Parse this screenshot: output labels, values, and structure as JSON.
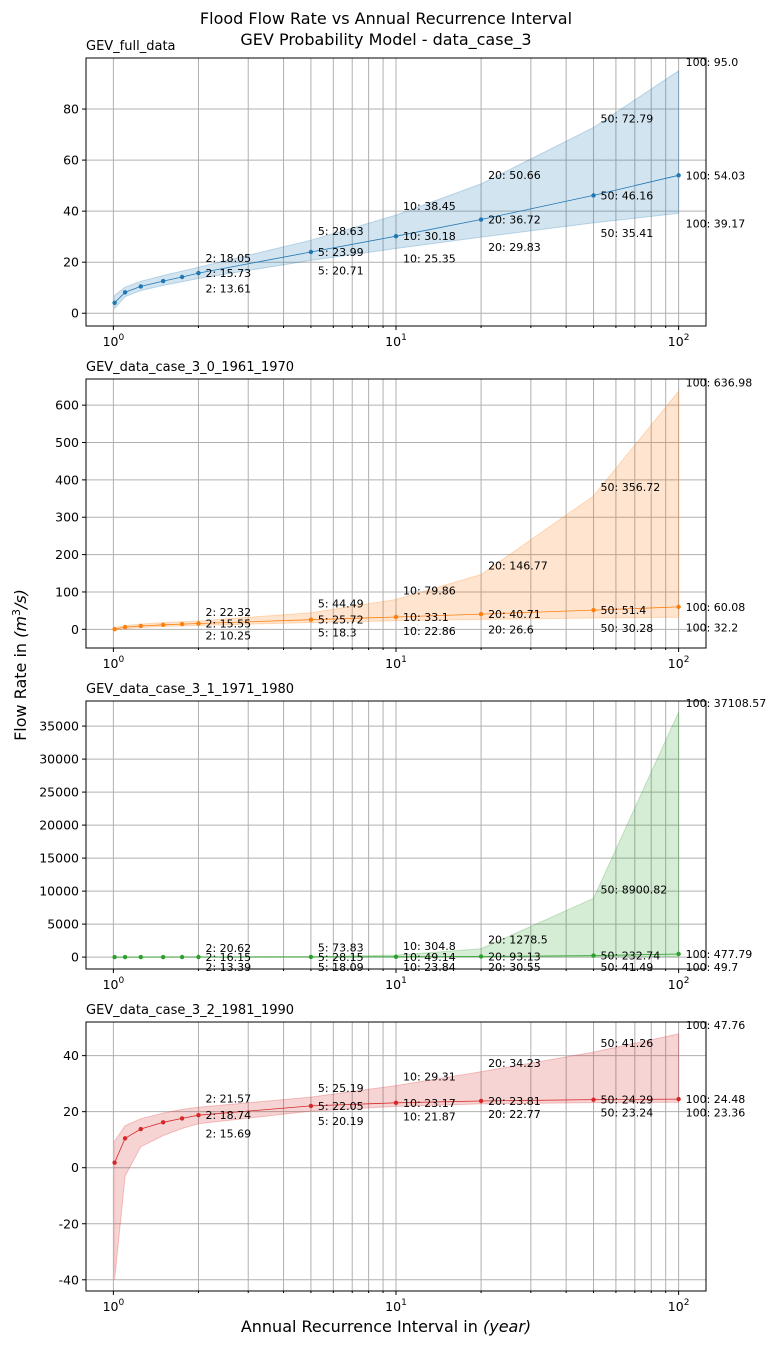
{
  "figure": {
    "title_line1": "Flood Flow Rate vs Annual Recurrence Interval",
    "title_line2": "GEV Probability Model - data_case_3",
    "xlabel_main": "Annual Recurrence Interval in ",
    "xlabel_unit": "(year)",
    "ylabel_main": "Flow Rate in ",
    "ylabel_unit": "(m",
    "ylabel_exp": "3",
    "ylabel_tail": "/s)",
    "x_tick_base": "10",
    "x_tick_exps": [
      "0",
      "1",
      "2"
    ]
  },
  "chart_data": [
    {
      "type": "line",
      "title": "GEV_full_data",
      "xscale": "log",
      "xlim": [
        0.8,
        125
      ],
      "ylim": [
        -5,
        100
      ],
      "yticks": [
        0,
        20,
        40,
        60,
        80
      ],
      "grid": true,
      "color": "#1f77b4",
      "x": [
        1.01,
        1.1,
        1.25,
        1.5,
        1.75,
        2,
        5,
        10,
        20,
        50,
        100
      ],
      "estimate": [
        4.1,
        8.2,
        10.5,
        12.6,
        14.2,
        15.73,
        23.99,
        30.18,
        36.72,
        46.16,
        54.03
      ],
      "lower": [
        1.8,
        6.5,
        8.9,
        10.9,
        12.3,
        13.61,
        20.71,
        25.35,
        29.83,
        35.41,
        39.17
      ],
      "upper": [
        7.0,
        10.2,
        12.5,
        14.8,
        16.5,
        18.05,
        28.63,
        38.45,
        50.66,
        72.79,
        95.0
      ],
      "annotations": {
        "upper": [
          "2: 18.05",
          "5: 28.63",
          "10: 38.45",
          "20: 50.66",
          "50: 72.79",
          "100: 95.0"
        ],
        "estimate": [
          "2: 15.73",
          "5: 23.99",
          "10: 30.18",
          "20: 36.72",
          "50: 46.16",
          "100: 54.03"
        ],
        "lower": [
          "2: 13.61",
          "5: 20.71",
          "10: 25.35",
          "20: 29.83",
          "50: 35.41",
          "100: 39.17"
        ]
      }
    },
    {
      "type": "line",
      "title": "GEV_data_case_3_0_1961_1970",
      "xscale": "log",
      "xlim": [
        0.8,
        125
      ],
      "ylim": [
        -50,
        670
      ],
      "yticks": [
        0,
        100,
        200,
        300,
        400,
        500,
        600
      ],
      "grid": true,
      "color": "#ff7f0e",
      "x": [
        1.01,
        1.1,
        1.25,
        1.5,
        1.75,
        2,
        5,
        10,
        20,
        50,
        100
      ],
      "estimate": [
        0.5,
        6.0,
        9.0,
        12.0,
        14.0,
        15.55,
        25.72,
        33.1,
        40.71,
        51.4,
        60.08
      ],
      "lower": [
        -3.0,
        2.0,
        5.0,
        7.5,
        9.0,
        10.25,
        18.3,
        22.86,
        26.6,
        30.28,
        32.2
      ],
      "upper": [
        4.0,
        10.0,
        14.0,
        18.0,
        20.5,
        22.32,
        44.49,
        79.86,
        146.77,
        356.72,
        636.98
      ],
      "annotations": {
        "upper": [
          "2: 22.32",
          "5: 44.49",
          "10: 79.86",
          "20: 146.77",
          "50: 356.72",
          "100: 636.98"
        ],
        "estimate": [
          "2: 15.55",
          "5: 25.72",
          "10: 33.1",
          "20: 40.71",
          "50: 51.4",
          "100: 60.08"
        ],
        "lower": [
          "2: 10.25",
          "5: 18.3",
          "10: 22.86",
          "20: 26.6",
          "50: 30.28",
          "100: 32.2"
        ]
      }
    },
    {
      "type": "line",
      "title": "GEV_data_case_3_1_1971_1980",
      "xscale": "log",
      "xlim": [
        0.8,
        125
      ],
      "ylim": [
        -1800,
        38800
      ],
      "yticks": [
        0,
        5000,
        10000,
        15000,
        20000,
        25000,
        30000,
        35000
      ],
      "grid": true,
      "color": "#2ca02c",
      "x": [
        1.01,
        1.1,
        1.25,
        1.5,
        1.75,
        2,
        5,
        10,
        20,
        50,
        100
      ],
      "estimate": [
        2,
        7,
        10,
        13,
        15,
        16.15,
        28.15,
        49.14,
        93.13,
        232.74,
        477.79
      ],
      "lower": [
        0,
        4,
        7,
        10,
        12,
        13.39,
        18.09,
        23.84,
        30.55,
        41.49,
        49.7
      ],
      "upper": [
        4,
        10,
        14,
        17,
        19,
        20.62,
        73.83,
        304.8,
        1278.5,
        8900.82,
        37108.57
      ],
      "annotations": {
        "upper": [
          "2: 20.62",
          "5: 73.83",
          "10: 304.8",
          "20: 1278.5",
          "50: 8900.82",
          "100: 37108.57"
        ],
        "estimate": [
          "2: 16.15",
          "5: 28.15",
          "10: 49.14",
          "20: 93.13",
          "50: 232.74",
          "100: 477.79"
        ],
        "lower": [
          "2: 13.39",
          "5: 18.09",
          "10: 23.84",
          "20: 30.55",
          "50: 41.49",
          "100: 49.7"
        ]
      }
    },
    {
      "type": "line",
      "title": "GEV_data_case_3_2_1981_1990",
      "xscale": "log",
      "xlim": [
        0.8,
        125
      ],
      "ylim": [
        -44,
        52
      ],
      "yticks": [
        -40,
        -20,
        0,
        20,
        40
      ],
      "grid": true,
      "color": "#d62728",
      "x": [
        1.01,
        1.1,
        1.25,
        1.5,
        1.75,
        2,
        5,
        10,
        20,
        50,
        100
      ],
      "estimate": [
        1.8,
        10.5,
        13.8,
        16.2,
        17.6,
        18.74,
        22.05,
        23.17,
        23.81,
        24.29,
        24.48
      ],
      "lower": [
        -40.0,
        -3.0,
        7.5,
        11.5,
        14.0,
        15.69,
        20.19,
        21.87,
        22.77,
        23.24,
        23.36
      ],
      "upper": [
        9.5,
        15.0,
        17.5,
        19.5,
        20.8,
        21.57,
        25.19,
        29.31,
        34.23,
        41.26,
        47.76
      ],
      "annotations": {
        "upper": [
          "2: 21.57",
          "5: 25.19",
          "10: 29.31",
          "20: 34.23",
          "50: 41.26",
          "100: 47.76"
        ],
        "estimate": [
          "2: 18.74",
          "5: 22.05",
          "10: 23.17",
          "20: 23.81",
          "50: 24.29",
          "100: 24.48"
        ],
        "lower": [
          "2: 15.69",
          "5: 20.19",
          "10: 21.87",
          "20: 22.77",
          "50: 23.24",
          "100: 23.36"
        ]
      }
    }
  ]
}
